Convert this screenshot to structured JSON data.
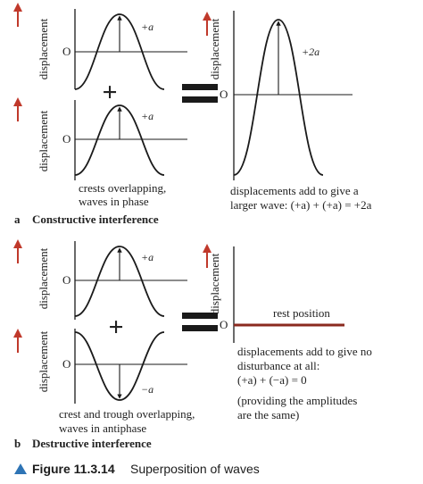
{
  "colors": {
    "arrow": "#c0392b",
    "rest_line": "#8b2a1f",
    "caption_triangle": "#2e74b5",
    "ink": "#1a1a1a"
  },
  "labels": {
    "axis": "displacement",
    "origin": "O",
    "plus_sign": "+",
    "amp_pos": "+a",
    "amp_neg": "−a",
    "amp_double": "+2a"
  },
  "part_a": {
    "letter": "a",
    "title": "Constructive interference",
    "note_left": [
      "crests overlapping,",
      "waves in phase"
    ],
    "note_right": [
      "displacements add to give a",
      "larger wave: (+a) + (+a) = +2a"
    ]
  },
  "part_b": {
    "letter": "b",
    "title": "Destructive interference",
    "note_left": [
      "crest and trough overlapping,",
      "waves in antiphase"
    ],
    "rest_label": "rest position",
    "note_right": [
      "displacements add to give no",
      "disturbance at all:",
      "(+a) + (−a) = 0",
      "(providing the amplitudes",
      "are the same)"
    ]
  },
  "figure": {
    "number": "Figure 11.3.14",
    "title": "Superposition of waves"
  }
}
